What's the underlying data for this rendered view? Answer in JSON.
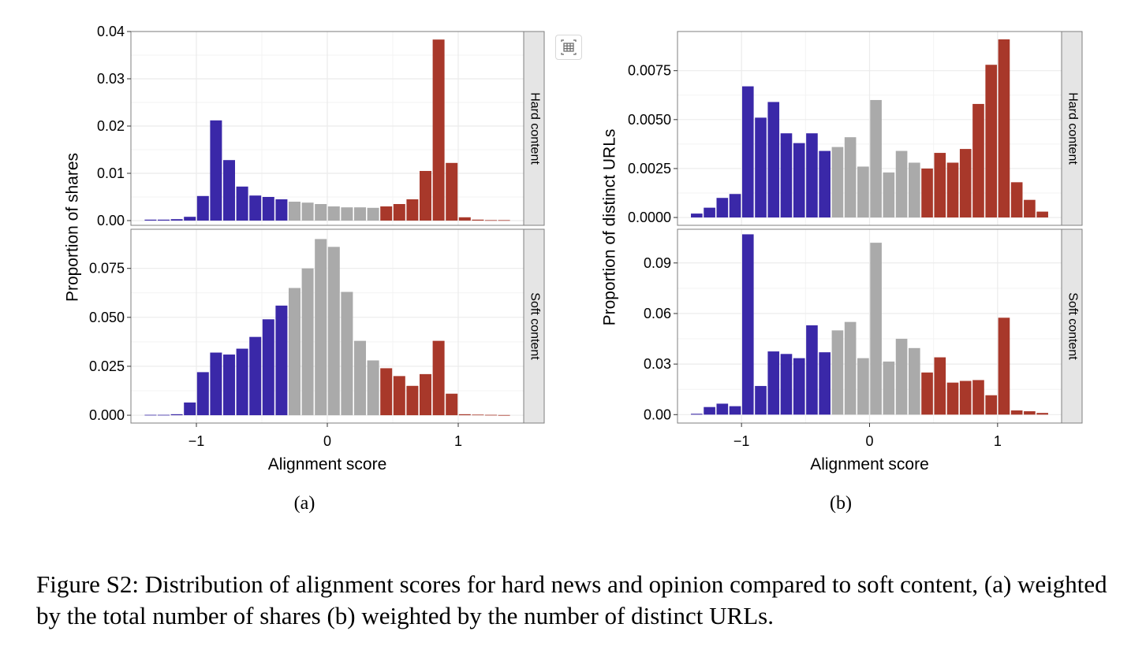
{
  "caption": "Figure S2: Distribution of alignment scores for hard news and opinion compared to soft content, (a) weighted by the total number of shares (b) weighted by the number of distinct URLs.",
  "toolbar": {
    "icon": "table-grid-icon"
  },
  "colors": {
    "liberal": "#3A28A8",
    "neutral": "#AAAAAA",
    "conservative": "#A8382A",
    "strip": "#E5E5E5",
    "grid": "#EBEBEB"
  },
  "chart_data": [
    {
      "type": "bar",
      "subtitle": "(a)",
      "xlabel": "Alignment score",
      "ylabel": "Proportion of shares",
      "xlim": [
        -1.5,
        1.5
      ],
      "xticks": [
        -1,
        0,
        1
      ],
      "xtick_labels": [
        "−1",
        "0",
        "1"
      ],
      "bin_centers": [
        -1.35,
        -1.25,
        -1.15,
        -1.05,
        -0.95,
        -0.85,
        -0.75,
        -0.65,
        -0.55,
        -0.45,
        -0.35,
        -0.25,
        -0.15,
        -0.05,
        0.05,
        0.15,
        0.25,
        0.35,
        0.45,
        0.55,
        0.65,
        0.75,
        0.85,
        0.95,
        1.05,
        1.15,
        1.25,
        1.35
      ],
      "bin_groups": [
        "liberal",
        "liberal",
        "liberal",
        "liberal",
        "liberal",
        "liberal",
        "liberal",
        "liberal",
        "liberal",
        "liberal",
        "liberal",
        "neutral",
        "neutral",
        "neutral",
        "neutral",
        "neutral",
        "neutral",
        "neutral",
        "conservative",
        "conservative",
        "conservative",
        "conservative",
        "conservative",
        "conservative",
        "conservative",
        "conservative",
        "conservative",
        "conservative"
      ],
      "panels": [
        {
          "strip": "Hard content",
          "ylim": [
            -0.001,
            0.04
          ],
          "yticks": [
            0.0,
            0.01,
            0.02,
            0.03,
            0.04
          ],
          "ytick_labels": [
            "0.00",
            "0.01",
            "0.02",
            "0.03",
            "0.04"
          ],
          "values": [
            0.0002,
            0.0002,
            0.0003,
            0.0008,
            0.0052,
            0.0212,
            0.0128,
            0.0072,
            0.0053,
            0.005,
            0.0045,
            0.004,
            0.0038,
            0.0035,
            0.003,
            0.0028,
            0.0028,
            0.0027,
            0.003,
            0.0035,
            0.0045,
            0.0105,
            0.0383,
            0.0122,
            0.0007,
            0.0002,
            0.0001,
            0.0001
          ]
        },
        {
          "strip": "Soft content",
          "ylim": [
            -0.004,
            0.095
          ],
          "yticks": [
            0.0,
            0.025,
            0.05,
            0.075
          ],
          "ytick_labels": [
            "0.000",
            "0.025",
            "0.050",
            "0.075"
          ],
          "values": [
            0.0002,
            0.0002,
            0.0005,
            0.0065,
            0.022,
            0.032,
            0.031,
            0.034,
            0.04,
            0.049,
            0.056,
            0.065,
            0.075,
            0.09,
            0.086,
            0.063,
            0.038,
            0.028,
            0.024,
            0.02,
            0.015,
            0.021,
            0.038,
            0.011,
            0.0005,
            0.0003,
            0.0002,
            0.0001
          ]
        }
      ]
    },
    {
      "type": "bar",
      "subtitle": "(b)",
      "xlabel": "Alignment score",
      "ylabel": "Proportion of distinct URLs",
      "xlim": [
        -1.5,
        1.5
      ],
      "xticks": [
        -1,
        0,
        1
      ],
      "xtick_labels": [
        "−1",
        "0",
        "1"
      ],
      "bin_centers": [
        -1.35,
        -1.25,
        -1.15,
        -1.05,
        -0.95,
        -0.85,
        -0.75,
        -0.65,
        -0.55,
        -0.45,
        -0.35,
        -0.25,
        -0.15,
        -0.05,
        0.05,
        0.15,
        0.25,
        0.35,
        0.45,
        0.55,
        0.65,
        0.75,
        0.85,
        0.95,
        1.05,
        1.15,
        1.25,
        1.35
      ],
      "bin_groups": [
        "liberal",
        "liberal",
        "liberal",
        "liberal",
        "liberal",
        "liberal",
        "liberal",
        "liberal",
        "liberal",
        "liberal",
        "liberal",
        "neutral",
        "neutral",
        "neutral",
        "neutral",
        "neutral",
        "neutral",
        "neutral",
        "conservative",
        "conservative",
        "conservative",
        "conservative",
        "conservative",
        "conservative",
        "conservative",
        "conservative",
        "conservative",
        "conservative"
      ],
      "panels": [
        {
          "strip": "Hard content",
          "ylim": [
            -0.0004,
            0.0095
          ],
          "yticks": [
            0.0,
            0.0025,
            0.005,
            0.0075
          ],
          "ytick_labels": [
            "0.0000",
            "0.0025",
            "0.0050",
            "0.0075"
          ],
          "values": [
            0.0002,
            0.0005,
            0.001,
            0.0012,
            0.0067,
            0.0051,
            0.0059,
            0.0043,
            0.0038,
            0.0043,
            0.0034,
            0.0036,
            0.0041,
            0.0026,
            0.006,
            0.0023,
            0.0034,
            0.0028,
            0.0025,
            0.0033,
            0.0028,
            0.0035,
            0.0058,
            0.0078,
            0.0091,
            0.0018,
            0.0009,
            0.0003
          ]
        },
        {
          "strip": "Soft content",
          "ylim": [
            -0.005,
            0.11
          ],
          "yticks": [
            0.0,
            0.03,
            0.06,
            0.09
          ],
          "ytick_labels": [
            "0.00",
            "0.03",
            "0.06",
            "0.09"
          ],
          "values": [
            0.0005,
            0.0045,
            0.0065,
            0.005,
            0.107,
            0.017,
            0.0375,
            0.036,
            0.0335,
            0.053,
            0.037,
            0.05,
            0.055,
            0.0335,
            0.102,
            0.0315,
            0.045,
            0.0395,
            0.025,
            0.034,
            0.019,
            0.02,
            0.0205,
            0.0115,
            0.0575,
            0.0025,
            0.002,
            0.001
          ]
        }
      ]
    }
  ]
}
